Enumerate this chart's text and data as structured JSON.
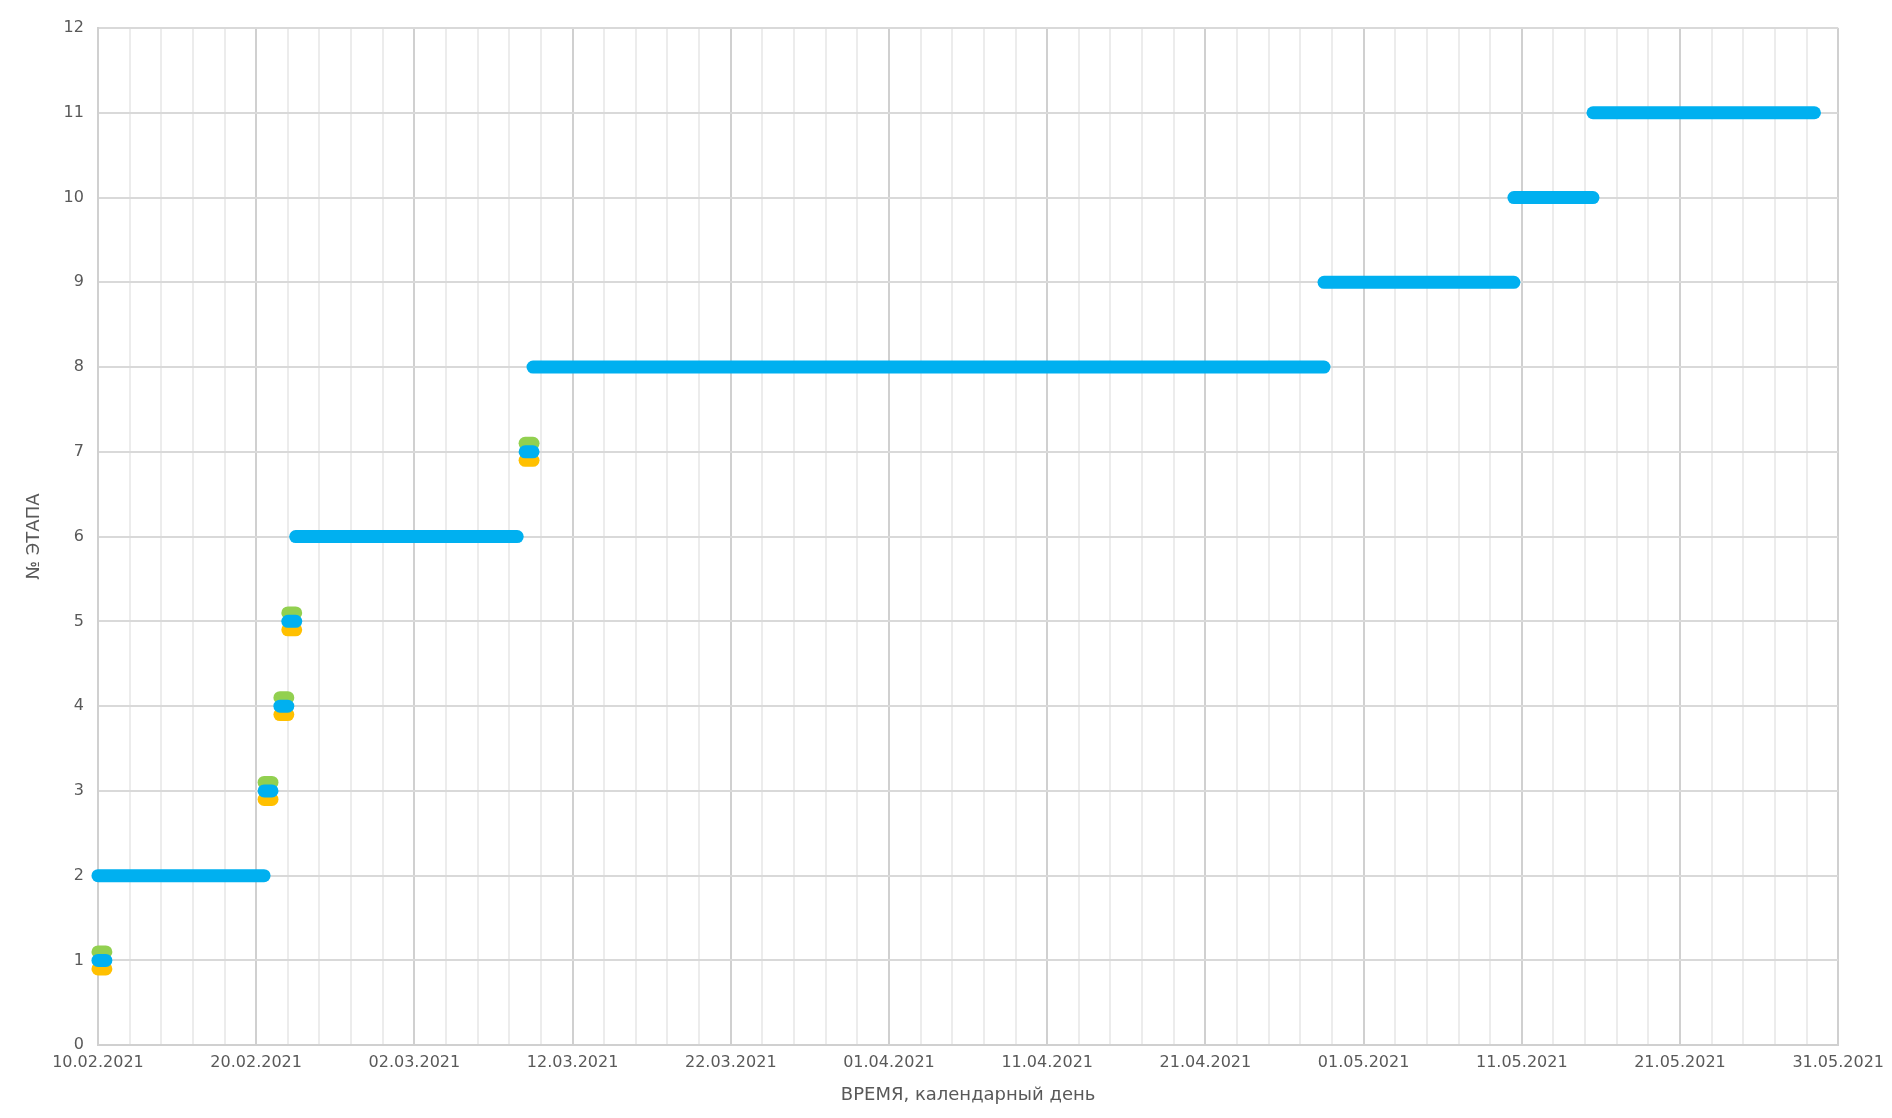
{
  "chart_data": {
    "type": "line",
    "xlabel": "ВРЕМЯ, календарный день",
    "ylabel": "№ ЭТАПА",
    "xlim": [
      "2021-02-10",
      "2021-05-31"
    ],
    "xticks": [
      {
        "value": "2021-02-10",
        "label": "10.02.2021"
      },
      {
        "value": "2021-02-12",
        "label": null
      },
      {
        "value": "2021-02-14",
        "label": null
      },
      {
        "value": "2021-02-16",
        "label": null
      },
      {
        "value": "2021-02-18",
        "label": null
      },
      {
        "value": "2021-02-20",
        "label": "20.02.2021"
      },
      {
        "value": "2021-02-22",
        "label": null
      },
      {
        "value": "2021-02-24",
        "label": null
      },
      {
        "value": "2021-02-26",
        "label": null
      },
      {
        "value": "2021-02-28",
        "label": null
      },
      {
        "value": "2021-03-02",
        "label": "02.03.2021"
      },
      {
        "value": "2021-03-04",
        "label": null
      },
      {
        "value": "2021-03-06",
        "label": null
      },
      {
        "value": "2021-03-08",
        "label": null
      },
      {
        "value": "2021-03-10",
        "label": null
      },
      {
        "value": "2021-03-12",
        "label": "12.03.2021"
      },
      {
        "value": "2021-03-14",
        "label": null
      },
      {
        "value": "2021-03-16",
        "label": null
      },
      {
        "value": "2021-03-18",
        "label": null
      },
      {
        "value": "2021-03-20",
        "label": null
      },
      {
        "value": "2021-03-22",
        "label": "22.03.2021"
      },
      {
        "value": "2021-03-24",
        "label": null
      },
      {
        "value": "2021-03-26",
        "label": null
      },
      {
        "value": "2021-03-28",
        "label": null
      },
      {
        "value": "2021-03-30",
        "label": null
      },
      {
        "value": "2021-04-01",
        "label": "01.04.2021"
      },
      {
        "value": "2021-04-03",
        "label": null
      },
      {
        "value": "2021-04-05",
        "label": null
      },
      {
        "value": "2021-04-07",
        "label": null
      },
      {
        "value": "2021-04-09",
        "label": null
      },
      {
        "value": "2021-04-11",
        "label": "11.04.2021"
      },
      {
        "value": "2021-04-13",
        "label": null
      },
      {
        "value": "2021-04-15",
        "label": null
      },
      {
        "value": "2021-04-17",
        "label": null
      },
      {
        "value": "2021-04-19",
        "label": null
      },
      {
        "value": "2021-04-21",
        "label": "21.04.2021"
      },
      {
        "value": "2021-04-23",
        "label": null
      },
      {
        "value": "2021-04-25",
        "label": null
      },
      {
        "value": "2021-04-27",
        "label": null
      },
      {
        "value": "2021-04-29",
        "label": null
      },
      {
        "value": "2021-05-01",
        "label": "01.05.2021"
      },
      {
        "value": "2021-05-03",
        "label": null
      },
      {
        "value": "2021-05-05",
        "label": null
      },
      {
        "value": "2021-05-07",
        "label": null
      },
      {
        "value": "2021-05-09",
        "label": null
      },
      {
        "value": "2021-05-11",
        "label": "11.05.2021"
      },
      {
        "value": "2021-05-13",
        "label": null
      },
      {
        "value": "2021-05-15",
        "label": null
      },
      {
        "value": "2021-05-17",
        "label": null
      },
      {
        "value": "2021-05-19",
        "label": null
      },
      {
        "value": "2021-05-21",
        "label": "21.05.2021"
      },
      {
        "value": "2021-05-23",
        "label": null
      },
      {
        "value": "2021-05-25",
        "label": null
      },
      {
        "value": "2021-05-27",
        "label": null
      },
      {
        "value": "2021-05-29",
        "label": null
      },
      {
        "value": "2021-05-31",
        "label": "31.05.2021"
      }
    ],
    "ylim": [
      0,
      12
    ],
    "yticks": [
      0,
      1,
      2,
      3,
      4,
      5,
      6,
      7,
      8,
      9,
      10,
      11,
      12
    ],
    "grid": true,
    "legend": false,
    "marker": "none",
    "line_style": "solid",
    "series": [
      {
        "color": "#92d050",
        "x": [
          "2021-02-10T00:00",
          "2021-02-10T12:00"
        ],
        "values": [
          1.1,
          1.1
        ]
      },
      {
        "color": "#92d050",
        "x": [
          "2021-02-20T12:00",
          "2021-02-21T00:00"
        ],
        "values": [
          3.1,
          3.1
        ]
      },
      {
        "color": "#92d050",
        "x": [
          "2021-02-21T12:00",
          "2021-02-22T00:00"
        ],
        "values": [
          4.1,
          4.1
        ]
      },
      {
        "color": "#92d050",
        "x": [
          "2021-02-22T00:00",
          "2021-02-22T12:00"
        ],
        "values": [
          5.1,
          5.1
        ]
      },
      {
        "color": "#92d050",
        "x": [
          "2021-03-09T00:00",
          "2021-03-09T12:00"
        ],
        "values": [
          7.1,
          7.1
        ]
      },
      {
        "color": "#ffc000",
        "x": [
          "2021-02-10T00:00",
          "2021-02-10T12:00"
        ],
        "values": [
          0.9,
          0.9
        ]
      },
      {
        "color": "#ffc000",
        "x": [
          "2021-02-20T12:00",
          "2021-02-21T00:00"
        ],
        "values": [
          2.9,
          2.9
        ]
      },
      {
        "color": "#ffc000",
        "x": [
          "2021-02-21T12:00",
          "2021-02-22T00:00"
        ],
        "values": [
          3.9,
          3.9
        ]
      },
      {
        "color": "#ffc000",
        "x": [
          "2021-02-22T00:00",
          "2021-02-22T12:00"
        ],
        "values": [
          4.9,
          4.9
        ]
      },
      {
        "color": "#ffc000",
        "x": [
          "2021-03-09T00:00",
          "2021-03-09T12:00"
        ],
        "values": [
          6.9,
          6.9
        ]
      },
      {
        "color": "#00b0f0",
        "x": [
          "2021-02-10T00:00",
          "2021-02-10T12:00"
        ],
        "values": [
          1,
          1
        ]
      },
      {
        "color": "#00b0f0",
        "x": [
          "2021-02-10T00:00",
          "2021-02-20T12:00"
        ],
        "values": [
          2,
          2
        ]
      },
      {
        "color": "#00b0f0",
        "x": [
          "2021-02-20T12:00",
          "2021-02-21T00:00"
        ],
        "values": [
          3,
          3
        ]
      },
      {
        "color": "#00b0f0",
        "x": [
          "2021-02-21T12:00",
          "2021-02-22T00:00"
        ],
        "values": [
          4,
          4
        ]
      },
      {
        "color": "#00b0f0",
        "x": [
          "2021-02-22T00:00",
          "2021-02-22T12:00"
        ],
        "values": [
          5,
          5
        ]
      },
      {
        "color": "#00b0f0",
        "x": [
          "2021-02-22T12:00",
          "2021-03-08T12:00"
        ],
        "values": [
          6,
          6
        ]
      },
      {
        "color": "#00b0f0",
        "x": [
          "2021-03-09T00:00",
          "2021-03-09T12:00"
        ],
        "values": [
          7,
          7
        ]
      },
      {
        "color": "#00b0f0",
        "x": [
          "2021-03-09T12:00",
          "2021-04-28T12:00"
        ],
        "values": [
          8,
          8
        ]
      },
      {
        "color": "#00b0f0",
        "x": [
          "2021-04-28T12:00",
          "2021-05-10T12:00"
        ],
        "values": [
          9,
          9
        ]
      },
      {
        "color": "#00b0f0",
        "x": [
          "2021-05-10T12:00",
          "2021-05-15T12:00"
        ],
        "values": [
          10,
          10
        ]
      },
      {
        "color": "#00b0f0",
        "x": [
          "2021-05-15T12:00",
          "2021-05-29T12:00"
        ],
        "values": [
          11,
          11
        ]
      }
    ]
  }
}
